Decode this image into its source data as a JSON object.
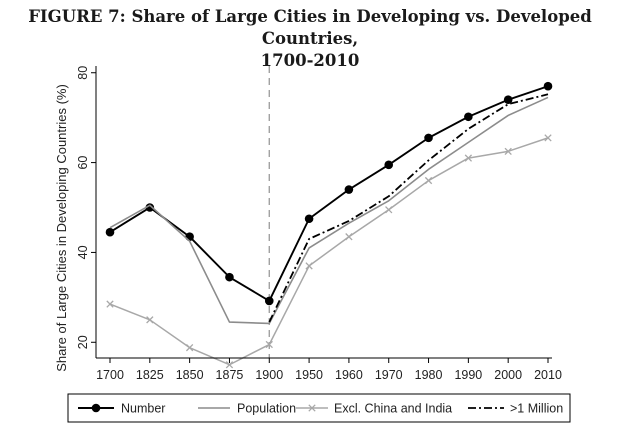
{
  "chart_data": {
    "type": "line",
    "title_line1": "FIGURE 7: Share of Large Cities in Developing vs. Developed Countries,",
    "title_line2": "1700-2010",
    "ylabel": "Share of Large Cities in Developing Countries (%)",
    "xlabel": "",
    "categories": [
      "1700",
      "1825",
      "1850",
      "1875",
      "1900",
      "1950",
      "1960",
      "1970",
      "1980",
      "1990",
      "2000",
      "2010"
    ],
    "yticks": [
      20,
      40,
      60,
      80
    ],
    "ylim": [
      16.5,
      81.5
    ],
    "vline_at": "1900",
    "series": [
      {
        "name": "Number",
        "color": "#000000",
        "style": "solid-dot",
        "values": [
          44.5,
          50.0,
          43.5,
          34.5,
          29.2,
          47.5,
          54.0,
          59.5,
          65.5,
          70.2,
          74.0,
          77.0
        ]
      },
      {
        "name": "Population",
        "color": "#8c8c8c",
        "style": "solid",
        "values": [
          45.5,
          50.5,
          42.5,
          24.5,
          24.2,
          41.0,
          46.5,
          51.5,
          58.5,
          64.5,
          70.5,
          74.5
        ]
      },
      {
        "name": "Excl. China and India",
        "color": "#a8a8a8",
        "style": "solid-x",
        "values": [
          28.5,
          25.0,
          18.8,
          15.0,
          19.5,
          37.0,
          43.5,
          49.5,
          56.0,
          61.0,
          62.5,
          65.5
        ]
      },
      {
        "name": ">1 Million",
        "color": "#000000",
        "style": "dashdot",
        "values": [
          null,
          null,
          null,
          null,
          24.5,
          43.0,
          47.0,
          52.5,
          60.5,
          67.5,
          73.0,
          75.2
        ]
      }
    ]
  }
}
